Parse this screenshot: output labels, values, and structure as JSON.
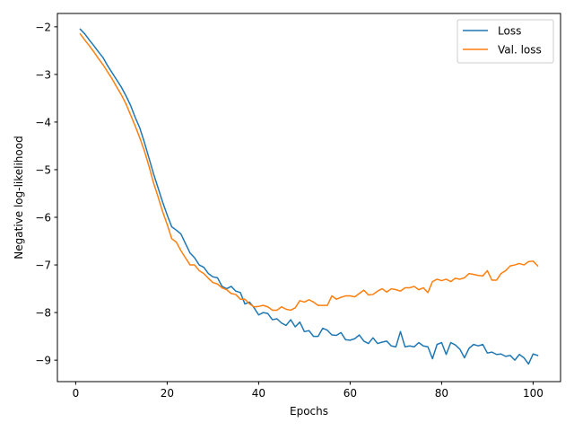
{
  "chart_data": {
    "type": "line",
    "title": "",
    "xlabel": "Epochs",
    "ylabel": "Negative log-likelihood",
    "xlim": [
      -4,
      106
    ],
    "ylim": [
      -9.45,
      -1.72
    ],
    "xticks": [
      0,
      20,
      40,
      60,
      80,
      100
    ],
    "yticks": [
      -9,
      -8,
      -7,
      -6,
      -5,
      -4,
      -3,
      -2
    ],
    "ytick_labels": [
      "−9",
      "−8",
      "−7",
      "−6",
      "−5",
      "−4",
      "−3",
      "−2"
    ],
    "grid": false,
    "legend_position": "top-right",
    "series": [
      {
        "name": "Loss",
        "color": "#1f77b4",
        "x": [
          1,
          2,
          3,
          4,
          5,
          6,
          7,
          8,
          9,
          10,
          11,
          12,
          13,
          14,
          15,
          16,
          17,
          18,
          19,
          20,
          21,
          22,
          23,
          24,
          25,
          26,
          27,
          28,
          29,
          30,
          31,
          32,
          33,
          34,
          35,
          36,
          37,
          38,
          39,
          40,
          41,
          42,
          43,
          44,
          45,
          46,
          47,
          48,
          49,
          50,
          51,
          52,
          53,
          54,
          55,
          56,
          57,
          58,
          59,
          60,
          61,
          62,
          63,
          64,
          65,
          66,
          67,
          68,
          69,
          70,
          71,
          72,
          73,
          74,
          75,
          76,
          77,
          78,
          79,
          80,
          81,
          82,
          83,
          84,
          85,
          86,
          87,
          88,
          89,
          90,
          91,
          92,
          93,
          94,
          95,
          96,
          97,
          98,
          99,
          100,
          101
        ],
        "values": [
          -2.05,
          -2.15,
          -2.28,
          -2.4,
          -2.53,
          -2.65,
          -2.82,
          -2.97,
          -3.12,
          -3.27,
          -3.45,
          -3.65,
          -3.9,
          -4.12,
          -4.42,
          -4.75,
          -5.08,
          -5.38,
          -5.68,
          -5.95,
          -6.2,
          -6.27,
          -6.35,
          -6.55,
          -6.75,
          -6.85,
          -7.0,
          -7.05,
          -7.18,
          -7.25,
          -7.27,
          -7.45,
          -7.5,
          -7.45,
          -7.55,
          -7.58,
          -7.82,
          -7.78,
          -7.9,
          -8.05,
          -8.0,
          -8.02,
          -8.15,
          -8.13,
          -8.22,
          -8.27,
          -8.15,
          -8.3,
          -8.2,
          -8.4,
          -8.38,
          -8.5,
          -8.5,
          -8.33,
          -8.37,
          -8.47,
          -8.48,
          -8.42,
          -8.57,
          -8.58,
          -8.55,
          -8.47,
          -8.6,
          -8.65,
          -8.53,
          -8.65,
          -8.62,
          -8.6,
          -8.7,
          -8.72,
          -8.4,
          -8.72,
          -8.7,
          -8.72,
          -8.63,
          -8.7,
          -8.72,
          -8.97,
          -8.67,
          -8.63,
          -8.88,
          -8.63,
          -8.68,
          -8.77,
          -8.95,
          -8.75,
          -8.67,
          -8.7,
          -8.67,
          -8.85,
          -8.83,
          -8.88,
          -8.87,
          -8.92,
          -8.9,
          -9.0,
          -8.88,
          -8.95,
          -9.08,
          -8.87,
          -8.9
        ]
      },
      {
        "name": "Val. loss",
        "color": "#ff7f0e",
        "x": [
          1,
          2,
          3,
          4,
          5,
          6,
          7,
          8,
          9,
          10,
          11,
          12,
          13,
          14,
          15,
          16,
          17,
          18,
          19,
          20,
          21,
          22,
          23,
          24,
          25,
          26,
          27,
          28,
          29,
          30,
          31,
          32,
          33,
          34,
          35,
          36,
          37,
          38,
          39,
          40,
          41,
          42,
          43,
          44,
          45,
          46,
          47,
          48,
          49,
          50,
          51,
          52,
          53,
          54,
          55,
          56,
          57,
          58,
          59,
          60,
          61,
          62,
          63,
          64,
          65,
          66,
          67,
          68,
          69,
          70,
          71,
          72,
          73,
          74,
          75,
          76,
          77,
          78,
          79,
          80,
          81,
          82,
          83,
          84,
          85,
          86,
          87,
          88,
          89,
          90,
          91,
          92,
          93,
          94,
          95,
          96,
          97,
          98,
          99,
          100,
          101
        ],
        "values": [
          -2.15,
          -2.28,
          -2.4,
          -2.53,
          -2.67,
          -2.8,
          -2.95,
          -3.1,
          -3.27,
          -3.43,
          -3.62,
          -3.85,
          -4.08,
          -4.33,
          -4.6,
          -4.92,
          -5.27,
          -5.57,
          -5.88,
          -6.15,
          -6.45,
          -6.52,
          -6.7,
          -6.85,
          -7.0,
          -7.0,
          -7.12,
          -7.18,
          -7.28,
          -7.37,
          -7.4,
          -7.48,
          -7.52,
          -7.6,
          -7.62,
          -7.72,
          -7.72,
          -7.82,
          -7.88,
          -7.87,
          -7.85,
          -7.88,
          -7.95,
          -7.95,
          -7.88,
          -7.93,
          -7.95,
          -7.9,
          -7.75,
          -7.78,
          -7.73,
          -7.78,
          -7.85,
          -7.85,
          -7.85,
          -7.65,
          -7.72,
          -7.68,
          -7.65,
          -7.65,
          -7.67,
          -7.6,
          -7.53,
          -7.63,
          -7.62,
          -7.55,
          -7.5,
          -7.57,
          -7.5,
          -7.52,
          -7.55,
          -7.48,
          -7.48,
          -7.45,
          -7.52,
          -7.48,
          -7.58,
          -7.35,
          -7.3,
          -7.33,
          -7.3,
          -7.35,
          -7.28,
          -7.3,
          -7.27,
          -7.18,
          -7.2,
          -7.22,
          -7.23,
          -7.12,
          -7.32,
          -7.32,
          -7.18,
          -7.12,
          -7.02,
          -7.0,
          -6.97,
          -7.0,
          -6.93,
          -6.92,
          -7.02
        ]
      }
    ]
  }
}
